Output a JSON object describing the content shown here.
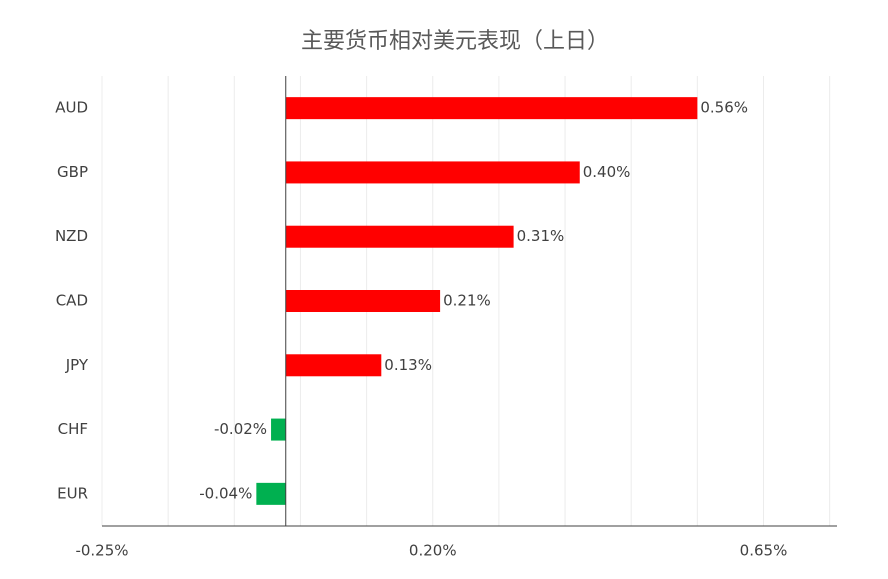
{
  "chart_data": {
    "type": "hbar",
    "title": "主要货币相对美元表现（上日）",
    "categories": [
      "AUD",
      "GBP",
      "NZD",
      "CAD",
      "JPY",
      "CHF",
      "EUR"
    ],
    "values": [
      0.56,
      0.4,
      0.31,
      0.21,
      0.13,
      -0.02,
      -0.04
    ],
    "value_labels": [
      "0.56%",
      "0.40%",
      "0.31%",
      "0.21%",
      "0.13%",
      "-0.02%",
      "-0.04%"
    ],
    "colors": [
      "#ff0000",
      "#ff0000",
      "#ff0000",
      "#ff0000",
      "#ff0000",
      "#00b050",
      "#00b050"
    ],
    "xlim": [
      -0.25,
      0.75
    ],
    "xticks": [
      {
        "value": -0.25,
        "label": "-0.25%"
      },
      {
        "value": 0.2,
        "label": "0.20%"
      },
      {
        "value": 0.65,
        "label": "0.65%"
      }
    ],
    "minor_xticks": [
      -0.16,
      -0.07,
      0.02,
      0.11,
      0.29,
      0.38,
      0.47,
      0.56,
      0.74
    ],
    "grid": true
  }
}
